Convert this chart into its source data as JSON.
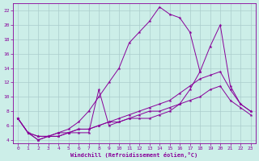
{
  "xlabel": "Windchill (Refroidissement éolien,°C)",
  "xlim": [
    -0.5,
    23.5
  ],
  "ylim": [
    3.5,
    23
  ],
  "xticks": [
    0,
    1,
    2,
    3,
    4,
    5,
    6,
    7,
    8,
    9,
    10,
    11,
    12,
    13,
    14,
    15,
    16,
    17,
    18,
    19,
    20,
    21,
    22,
    23
  ],
  "yticks": [
    4,
    6,
    8,
    10,
    12,
    14,
    16,
    18,
    20,
    22
  ],
  "background_color": "#cceee8",
  "line_color": "#880099",
  "grid_color": "#aacccc",
  "lines": [
    {
      "x": [
        0,
        1,
        2,
        3,
        4,
        5,
        6,
        7,
        8,
        9,
        10,
        11,
        12,
        13,
        14,
        15,
        16,
        17,
        18,
        19,
        20,
        21,
        22,
        23
      ],
      "y": [
        7,
        5,
        4.5,
        4.5,
        5,
        5.5,
        6.5,
        8,
        10,
        12,
        14,
        17.5,
        19,
        20.5,
        22.5,
        21.5,
        21,
        19,
        13.5,
        null,
        null,
        null,
        null,
        null
      ]
    },
    {
      "x": [
        0,
        1,
        2,
        3,
        4,
        5,
        6,
        7,
        8,
        9,
        10,
        11,
        12,
        13,
        14,
        15,
        16,
        17,
        18,
        19,
        20,
        21,
        22,
        23
      ],
      "y": [
        7,
        5,
        4.5,
        4.5,
        5,
        5,
        5,
        5,
        11,
        6,
        6.5,
        7,
        7,
        7,
        7.5,
        8,
        9,
        11,
        13.5,
        17,
        20,
        11.5,
        9,
        8
      ]
    },
    {
      "x": [
        0,
        1,
        2,
        3,
        4,
        5,
        6,
        7,
        8,
        9,
        10,
        11,
        12,
        13,
        14,
        15,
        16,
        17,
        18,
        19,
        20,
        21,
        22,
        23
      ],
      "y": [
        7,
        5,
        4,
        4.5,
        4.5,
        5,
        5.5,
        5.5,
        6,
        6.5,
        7,
        7.5,
        8,
        8.5,
        9,
        9.5,
        10.5,
        11.5,
        12.5,
        13,
        13.5,
        11,
        9,
        8
      ]
    },
    {
      "x": [
        0,
        1,
        2,
        3,
        4,
        5,
        6,
        7,
        8,
        9,
        10,
        11,
        12,
        13,
        14,
        15,
        16,
        17,
        18,
        19,
        20,
        21,
        22,
        23
      ],
      "y": [
        7,
        5,
        4,
        4.5,
        4.5,
        5,
        5.5,
        5.5,
        6,
        6.5,
        6.5,
        7,
        7.5,
        8,
        8,
        8.5,
        9,
        9.5,
        10,
        11,
        11.5,
        9.5,
        8.5,
        7.5
      ]
    }
  ]
}
